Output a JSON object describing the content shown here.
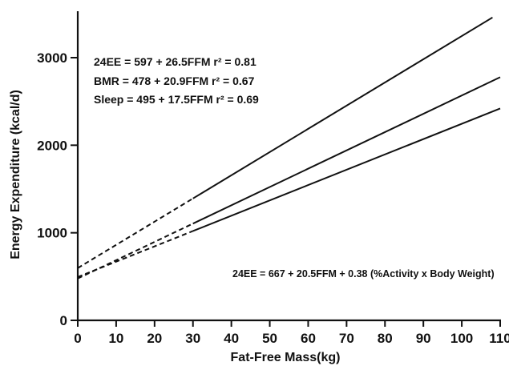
{
  "chart_data": {
    "type": "line",
    "xlabel": "Fat-Free Mass(kg)",
    "ylabel": "Energy Expenditure (kcal/d)",
    "xlim": [
      0,
      110
    ],
    "ylim": [
      0,
      3500
    ],
    "xticks": [
      0,
      10,
      20,
      30,
      40,
      50,
      60,
      70,
      80,
      90,
      100,
      110
    ],
    "xtick_labels": [
      "0",
      "10",
      "20",
      "30",
      "40",
      "50",
      "60",
      "70",
      "80",
      "90",
      "100",
      "110"
    ],
    "yticks": [
      0,
      1000,
      2000,
      3000
    ],
    "ytick_labels": [
      "0",
      "1000",
      "2000",
      "3000"
    ],
    "grid": false,
    "legend": "none",
    "series": [
      {
        "name": "24EE",
        "intercept": 597,
        "slope": 26.5,
        "x": [
          0,
          30,
          108
        ],
        "y": [
          597,
          1392,
          3459
        ],
        "dashed_until": 30
      },
      {
        "name": "BMR",
        "intercept": 478,
        "slope": 20.9,
        "x": [
          0,
          30,
          110
        ],
        "y": [
          478,
          1105,
          2777
        ],
        "dashed_until": 30
      },
      {
        "name": "Sleep",
        "intercept": 495,
        "slope": 17.5,
        "x": [
          0,
          30,
          110
        ],
        "y": [
          495,
          1020,
          2420
        ],
        "dashed_until": 30
      }
    ],
    "annotations": {
      "equations": [
        "24EE = 597 + 26.5FFM   r² = 0.81",
        "BMR = 478 + 20.9FFM   r² = 0.67",
        "Sleep = 495 + 17.5FFM   r² = 0.69"
      ],
      "multivariate_equation": "24EE = 667 + 20.5FFM + 0.38 (%Activity x Body Weight)"
    }
  }
}
